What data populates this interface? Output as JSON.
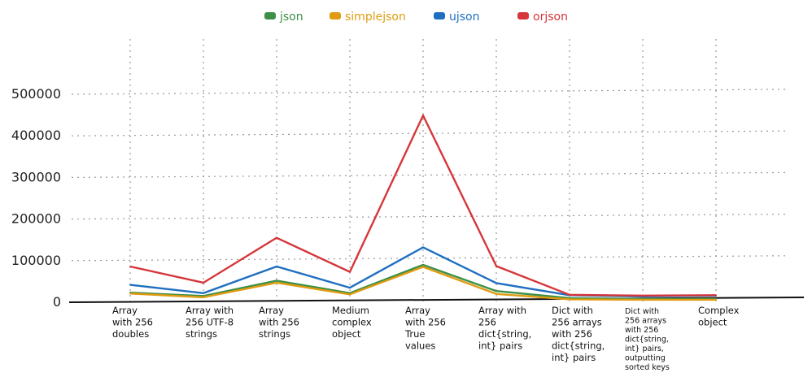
{
  "chart_data": {
    "type": "line",
    "title": "",
    "xlabel": "",
    "ylabel": "",
    "ylim": [
      0,
      500000
    ],
    "yticks": [
      "0",
      "100000",
      "200000",
      "300000",
      "400000",
      "500000"
    ],
    "ytick_values": [
      0,
      100000,
      200000,
      300000,
      400000,
      500000
    ],
    "grid": true,
    "legend_position": "top-center",
    "categories": [
      [
        "Array",
        "with 256",
        "doubles"
      ],
      [
        "Array with",
        "256 UTF-8",
        "strings"
      ],
      [
        "Array",
        "with 256",
        "strings"
      ],
      [
        "Medium",
        "complex",
        "object"
      ],
      [
        "Array",
        "with 256",
        "True",
        "values"
      ],
      [
        "Array with",
        "256",
        "dict{string,",
        "int} pairs"
      ],
      [
        "Dict with",
        "256 arrays",
        "with 256",
        "dict{string,",
        "int} pairs"
      ],
      [
        "Dict with",
        "256 arrays",
        "with 256",
        "dict{string,",
        "int} pairs,",
        "outputting",
        "sorted keys"
      ],
      [
        "Complex",
        "object"
      ]
    ],
    "series": [
      {
        "name": "json",
        "color": "#3d8f46",
        "values": [
          21000,
          13000,
          50000,
          20000,
          88000,
          25000,
          8000,
          6000,
          6000
        ]
      },
      {
        "name": "simplejson",
        "color": "#e09b12",
        "values": [
          19000,
          10000,
          45000,
          17000,
          83000,
          18000,
          5000,
          4000,
          4000
        ]
      },
      {
        "name": "ujson",
        "color": "#1f6fc0",
        "values": [
          40000,
          20000,
          84000,
          33000,
          130000,
          44000,
          15000,
          12000,
          14000
        ]
      },
      {
        "name": "orjson",
        "color": "#d6363a",
        "values": [
          84000,
          45000,
          153000,
          71000,
          447000,
          85000,
          16000,
          14000,
          15000
        ]
      }
    ]
  }
}
